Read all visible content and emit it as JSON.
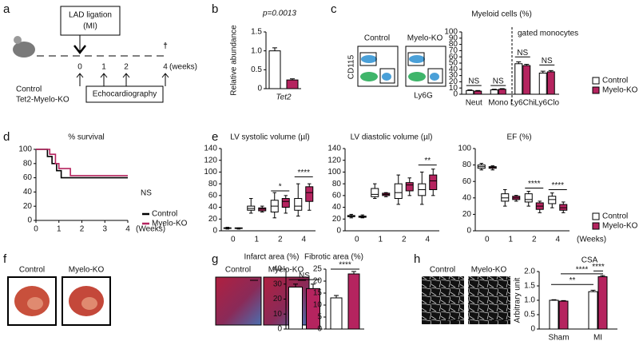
{
  "panels": [
    "a",
    "b",
    "c",
    "d",
    "e",
    "f",
    "g",
    "h"
  ],
  "diagram": {
    "event": "LAD ligation",
    "event_sub": "(MI)",
    "timepoints": [
      0,
      1,
      2,
      4
    ],
    "unit": "(weeks)",
    "groups": [
      "Control",
      "Tet2-Myelo-KO"
    ],
    "assay": "Echocardiography",
    "endpoint": "†"
  },
  "flow": {
    "samples": [
      "Control",
      "Myelo-KO"
    ],
    "y_label": "CD115",
    "x_label": "Ly6G"
  },
  "images_f": [
    "Control",
    "Myelo-KO"
  ],
  "images_g": [
    "Control",
    "Myelo-KO"
  ],
  "images_h": [
    "Control",
    "Myelo-KO"
  ],
  "chart_data": [
    {
      "type": "bar",
      "title": "p=0.0013",
      "y_label": "Relative abundance",
      "categories": [
        "Tet2"
      ],
      "series": [
        {
          "name": "Control",
          "color": "#ffffff",
          "values": [
            1.0
          ],
          "errors": [
            0.08
          ]
        },
        {
          "name": "Myelo-KO",
          "color": "#b5245f",
          "values": [
            0.23
          ],
          "errors": [
            0.03
          ]
        }
      ],
      "ylim": [
        0,
        1.5
      ],
      "yticks": [
        0,
        0.5,
        {
          "value": 1,
          "label": "1.0"
        },
        1.5
      ]
    },
    {
      "type": "bar",
      "title": "Myeloid cells (%)",
      "subtitle": "gated monocytes",
      "categories": [
        "Neut",
        "Mono",
        "Ly6Chi",
        "Ly6Clo"
      ],
      "series": [
        {
          "name": "Control",
          "color": "#ffffff",
          "values": [
            6,
            7,
            49,
            34
          ],
          "errors": [
            1,
            1,
            3,
            3
          ]
        },
        {
          "name": "Myelo-KO",
          "color": "#b5245f",
          "values": [
            5,
            8,
            46,
            36
          ],
          "errors": [
            1,
            1,
            2,
            2
          ]
        }
      ],
      "annotations": [
        "NS",
        "NS",
        "NS",
        "NS"
      ],
      "ylim": [
        0,
        100
      ],
      "yticks": [
        0,
        10,
        20,
        30,
        40,
        50,
        60,
        70,
        80,
        90,
        100
      ],
      "legend": true
    },
    {
      "type": "step",
      "title": "% survival",
      "x_label": "(Weeks)",
      "series": [
        {
          "name": "Control",
          "color": "#000000",
          "x": [
            0,
            0.5,
            0.7,
            0.9,
            1.1,
            4
          ],
          "values": [
            100,
            90,
            80,
            70,
            60,
            60
          ]
        },
        {
          "name": "Myelo-KO",
          "color": "#b5245f",
          "x": [
            0,
            0.6,
            0.85,
            1.0,
            1.5,
            4
          ],
          "values": [
            100,
            93,
            80,
            73,
            63,
            63
          ]
        }
      ],
      "annotations": [
        "NS"
      ],
      "xlim": [
        0,
        4
      ],
      "xticks": [
        0,
        1,
        2,
        3,
        4
      ],
      "ylim": [
        0,
        100
      ],
      "yticks": [
        0,
        20,
        40,
        60,
        80,
        100
      ],
      "legend": true
    },
    {
      "type": "box",
      "title": "LV systolic volume (µl)",
      "categories": [
        "0",
        "1",
        "2",
        "4"
      ],
      "series": [
        {
          "name": "Control",
          "color": "#ffffff",
          "min": [
            3,
            30,
            22,
            25
          ],
          "q1": [
            4,
            35,
            32,
            35
          ],
          "median": [
            5,
            38,
            42,
            42
          ],
          "q3": [
            5,
            42,
            52,
            55
          ],
          "max": [
            6,
            55,
            65,
            80
          ]
        },
        {
          "name": "Myelo-KO",
          "color": "#b5245f",
          "min": [
            3,
            32,
            30,
            35
          ],
          "q1": [
            4,
            34,
            40,
            50
          ],
          "median": [
            4,
            37,
            50,
            65
          ],
          "q3": [
            5,
            39,
            55,
            75
          ],
          "max": [
            5,
            42,
            60,
            80
          ]
        }
      ],
      "annotations": [
        "*",
        "****"
      ],
      "ylim": [
        0,
        140
      ],
      "yticks": [
        0,
        20,
        40,
        60,
        80,
        100,
        120,
        140
      ]
    },
    {
      "type": "box",
      "title": "LV diastolic volume (µl)",
      "categories": [
        "0",
        "1",
        "2",
        "4"
      ],
      "series": [
        {
          "name": "Control",
          "color": "#ffffff",
          "min": [
            22,
            55,
            45,
            45
          ],
          "q1": [
            24,
            58,
            55,
            60
          ],
          "median": [
            25,
            62,
            65,
            70
          ],
          "q3": [
            26,
            72,
            80,
            80
          ],
          "max": [
            28,
            80,
            95,
            100
          ]
        },
        {
          "name": "Myelo-KO",
          "color": "#b5245f",
          "min": [
            22,
            58,
            60,
            60
          ],
          "q1": [
            23,
            60,
            68,
            70
          ],
          "median": [
            24,
            62,
            78,
            85
          ],
          "q3": [
            25,
            64,
            82,
            95
          ],
          "max": [
            27,
            65,
            90,
            105
          ]
        }
      ],
      "annotations": [
        "**"
      ],
      "ylim": [
        0,
        140
      ],
      "yticks": [
        0,
        20,
        40,
        60,
        80,
        100,
        120,
        140
      ]
    },
    {
      "type": "box",
      "title": "EF (%)",
      "x_label": "(Weeks)",
      "categories": [
        "0",
        "1",
        "2",
        "4"
      ],
      "series": [
        {
          "name": "Control",
          "color": "#ffffff",
          "min": [
            74,
            30,
            30,
            28
          ],
          "q1": [
            76,
            36,
            35,
            33
          ],
          "median": [
            78,
            40,
            38,
            38
          ],
          "q3": [
            80,
            45,
            45,
            42
          ],
          "max": [
            82,
            50,
            48,
            46
          ]
        },
        {
          "name": "Myelo-KO",
          "color": "#b5245f",
          "min": [
            74,
            36,
            22,
            22
          ],
          "q1": [
            76,
            38,
            26,
            25
          ],
          "median": [
            77,
            40,
            30,
            28
          ],
          "q3": [
            78,
            42,
            34,
            32
          ],
          "max": [
            79,
            43,
            36,
            35
          ]
        }
      ],
      "annotations": [
        "****",
        "****"
      ],
      "ylim": [
        0,
        100
      ],
      "yticks": [
        0,
        20,
        40,
        60,
        80,
        100
      ],
      "legend": true
    },
    {
      "type": "bar",
      "title": "Infarct area (%)",
      "series": [
        {
          "name": "Control",
          "color": "#ffffff",
          "values": [
            28
          ],
          "errors": [
            2
          ]
        },
        {
          "name": "Myelo-KO",
          "color": "#b5245f",
          "values": [
            27
          ],
          "errors": [
            3
          ]
        }
      ],
      "annotations": [
        "NS"
      ],
      "ylim": [
        0,
        40
      ],
      "yticks": [
        0,
        10,
        20,
        30,
        40
      ]
    },
    {
      "type": "bar",
      "title": "Fibrotic area (%)",
      "series": [
        {
          "name": "Control",
          "color": "#ffffff",
          "values": [
            13
          ],
          "errors": [
            1
          ]
        },
        {
          "name": "Myelo-KO",
          "color": "#b5245f",
          "values": [
            23
          ],
          "errors": [
            1
          ]
        }
      ],
      "annotations": [
        "****"
      ],
      "ylim": [
        0,
        25
      ],
      "yticks": [
        0,
        5,
        10,
        15,
        20,
        25
      ]
    },
    {
      "type": "bar",
      "title": "CSA",
      "y_label": "Arbitrary unit",
      "categories": [
        "Sham",
        "MI"
      ],
      "series": [
        {
          "name": "Control",
          "color": "#ffffff",
          "values": [
            1.0,
            1.3
          ],
          "errors": [
            0.02,
            0.05
          ]
        },
        {
          "name": "Myelo-KO",
          "color": "#b5245f",
          "values": [
            0.97,
            1.82
          ],
          "errors": [
            0.02,
            0.04
          ]
        }
      ],
      "annotations": [
        "**",
        "****",
        "****"
      ],
      "ylim": [
        0,
        2
      ],
      "yticks": [
        0,
        0.5,
        {
          "value": 1,
          "label": "1.0"
        },
        1.5,
        {
          "value": 2,
          "label": "2.0"
        }
      ]
    }
  ]
}
